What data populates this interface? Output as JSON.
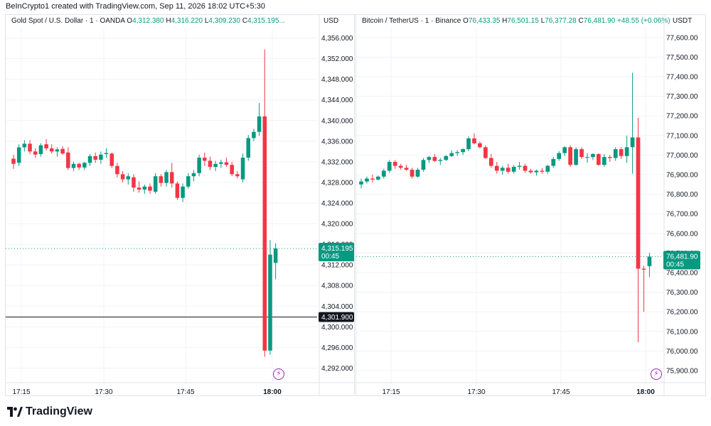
{
  "watermark": "BeInCrypto1 created with TradingView.com, Sep 11, 2026 18:02 UTC+5:30",
  "brand": "TradingView",
  "colors": {
    "up": "#089981",
    "down": "#f23645",
    "grid": "#f0f3fa",
    "text": "#131722"
  },
  "icons": [
    "tradingview-logo-icon",
    "lightning-icon"
  ],
  "panels": [
    {
      "symbol": "Gold Spot / U.S. Dollar · 1 · OANDA",
      "o_label": "O",
      "o": "4,312.380",
      "h_label": "H",
      "h": "4,316.220",
      "l_label": "L",
      "l": "4,309.230",
      "c_label": "C",
      "c": "4,315.195...",
      "currency": "USD",
      "last_price": "4,315.195",
      "countdown": "00:45",
      "marked_line_label": "4,301.900"
    },
    {
      "symbol": "Bitcoin / TetherUS · 1 · Binance",
      "o_label": "O",
      "o": "76,433.35",
      "h_label": "H",
      "h": "76,501.15",
      "l_label": "L",
      "l": "76,377.28",
      "c_label": "C",
      "c": "76,481.90",
      "change": "+48.55 (+0.06%)",
      "currency": "USDT",
      "last_price": "76,481.90",
      "countdown": "00:45"
    }
  ],
  "chart_data": [
    {
      "type": "candlestick",
      "title": "Gold Spot / U.S. Dollar · 1 · OANDA",
      "x_ticks": [
        "17:15",
        "17:30",
        "17:45",
        "18:00"
      ],
      "y_ticks": [
        4292,
        4296,
        4300,
        4304,
        4308,
        4312,
        4316,
        4320,
        4324,
        4328,
        4332,
        4336,
        4340,
        4344,
        4348,
        4352,
        4356
      ],
      "y_tick_labels": [
        "4,292.000",
        "4,296.000",
        "4,300.000",
        "4,304.000",
        "4,308.000",
        "4,312.000",
        "4,316.000",
        "4,320.000",
        "4,324.000",
        "4,328.000",
        "4,332.000",
        "4,336.000",
        "4,340.000",
        "4,344.000",
        "4,348.000",
        "4,352.000",
        "4,356.000"
      ],
      "ylim": [
        4290.0,
        4358.0
      ],
      "last_price": 4315.195,
      "horizontal_line": 4301.9,
      "candles": [
        {
          "t": "17:13",
          "o": 4332.6,
          "h": 4333.4,
          "l": 4330.6,
          "c": 4331.6
        },
        {
          "t": "17:14",
          "o": 4331.8,
          "h": 4335.4,
          "l": 4331.2,
          "c": 4334.8
        },
        {
          "t": "17:15",
          "o": 4334.8,
          "h": 4336.2,
          "l": 4334.0,
          "c": 4335.5
        },
        {
          "t": "17:16",
          "o": 4335.5,
          "h": 4336.2,
          "l": 4333.5,
          "c": 4334.0
        },
        {
          "t": "17:17",
          "o": 4334.0,
          "h": 4334.6,
          "l": 4332.8,
          "c": 4333.4
        },
        {
          "t": "17:18",
          "o": 4333.5,
          "h": 4335.6,
          "l": 4333.0,
          "c": 4335.2
        },
        {
          "t": "17:19",
          "o": 4335.4,
          "h": 4336.4,
          "l": 4334.2,
          "c": 4334.6
        },
        {
          "t": "17:20",
          "o": 4334.6,
          "h": 4335.4,
          "l": 4333.6,
          "c": 4334.0
        },
        {
          "t": "17:21",
          "o": 4334.0,
          "h": 4334.8,
          "l": 4333.0,
          "c": 4334.4
        },
        {
          "t": "17:22",
          "o": 4334.5,
          "h": 4335.0,
          "l": 4333.4,
          "c": 4333.6
        },
        {
          "t": "17:23",
          "o": 4333.8,
          "h": 4334.8,
          "l": 4330.4,
          "c": 4330.8
        },
        {
          "t": "17:24",
          "o": 4330.8,
          "h": 4332.0,
          "l": 4330.2,
          "c": 4331.6
        },
        {
          "t": "17:25",
          "o": 4331.6,
          "h": 4331.8,
          "l": 4330.4,
          "c": 4330.9
        },
        {
          "t": "17:26",
          "o": 4330.9,
          "h": 4332.0,
          "l": 4330.4,
          "c": 4331.8
        },
        {
          "t": "17:27",
          "o": 4331.8,
          "h": 4333.5,
          "l": 4331.2,
          "c": 4333.1
        },
        {
          "t": "17:28",
          "o": 4333.1,
          "h": 4333.8,
          "l": 4331.8,
          "c": 4332.4
        },
        {
          "t": "17:29",
          "o": 4332.4,
          "h": 4334.0,
          "l": 4331.6,
          "c": 4333.4
        },
        {
          "t": "17:30",
          "o": 4333.5,
          "h": 4334.6,
          "l": 4332.8,
          "c": 4333.7
        },
        {
          "t": "17:31",
          "o": 4333.6,
          "h": 4333.8,
          "l": 4330.8,
          "c": 4331.2
        },
        {
          "t": "17:32",
          "o": 4331.2,
          "h": 4331.8,
          "l": 4329.0,
          "c": 4329.6
        },
        {
          "t": "17:33",
          "o": 4329.6,
          "h": 4330.2,
          "l": 4328.0,
          "c": 4328.6
        },
        {
          "t": "17:34",
          "o": 4328.6,
          "h": 4329.8,
          "l": 4327.6,
          "c": 4329.2
        },
        {
          "t": "17:35",
          "o": 4329.0,
          "h": 4329.6,
          "l": 4326.2,
          "c": 4327.0
        },
        {
          "t": "17:36",
          "o": 4327.0,
          "h": 4328.2,
          "l": 4326.0,
          "c": 4326.6
        },
        {
          "t": "17:37",
          "o": 4326.6,
          "h": 4327.6,
          "l": 4325.8,
          "c": 4327.2
        },
        {
          "t": "17:38",
          "o": 4327.2,
          "h": 4327.8,
          "l": 4325.8,
          "c": 4326.4
        },
        {
          "t": "17:39",
          "o": 4326.2,
          "h": 4329.8,
          "l": 4325.8,
          "c": 4329.2
        },
        {
          "t": "17:40",
          "o": 4329.2,
          "h": 4329.6,
          "l": 4327.2,
          "c": 4327.9
        },
        {
          "t": "17:41",
          "o": 4327.9,
          "h": 4330.4,
          "l": 4327.2,
          "c": 4330.0
        },
        {
          "t": "17:42",
          "o": 4330.0,
          "h": 4331.8,
          "l": 4327.0,
          "c": 4327.8
        },
        {
          "t": "17:43",
          "o": 4327.8,
          "h": 4328.2,
          "l": 4324.6,
          "c": 4325.0
        },
        {
          "t": "17:44",
          "o": 4325.0,
          "h": 4327.8,
          "l": 4324.2,
          "c": 4327.2
        },
        {
          "t": "17:45",
          "o": 4327.2,
          "h": 4329.8,
          "l": 4326.8,
          "c": 4329.2
        },
        {
          "t": "17:46",
          "o": 4329.2,
          "h": 4330.4,
          "l": 4328.2,
          "c": 4329.8
        },
        {
          "t": "17:47",
          "o": 4329.8,
          "h": 4333.4,
          "l": 4329.2,
          "c": 4332.8
        },
        {
          "t": "17:48",
          "o": 4332.8,
          "h": 4333.8,
          "l": 4331.2,
          "c": 4332.2
        },
        {
          "t": "17:49",
          "o": 4332.2,
          "h": 4333.0,
          "l": 4330.4,
          "c": 4331.0
        },
        {
          "t": "17:50",
          "o": 4331.0,
          "h": 4332.2,
          "l": 4330.2,
          "c": 4331.6
        },
        {
          "t": "17:51",
          "o": 4331.6,
          "h": 4332.4,
          "l": 4330.8,
          "c": 4331.9
        },
        {
          "t": "17:52",
          "o": 4331.9,
          "h": 4332.8,
          "l": 4331.0,
          "c": 4331.4
        },
        {
          "t": "17:53",
          "o": 4331.4,
          "h": 4332.0,
          "l": 4329.2,
          "c": 4329.6
        },
        {
          "t": "17:54",
          "o": 4329.6,
          "h": 4330.2,
          "l": 4328.8,
          "c": 4329.2
        },
        {
          "t": "17:55",
          "o": 4328.6,
          "h": 4333.6,
          "l": 4328.0,
          "c": 4332.8
        },
        {
          "t": "17:56",
          "o": 4332.8,
          "h": 4337.2,
          "l": 4332.2,
          "c": 4336.6
        },
        {
          "t": "17:57",
          "o": 4336.6,
          "h": 4338.4,
          "l": 4336.0,
          "c": 4337.8
        },
        {
          "t": "17:58",
          "o": 4337.8,
          "h": 4343.4,
          "l": 4337.0,
          "c": 4340.8
        },
        {
          "t": "17:59",
          "o": 4340.8,
          "h": 4353.8,
          "l": 4294.2,
          "c": 4295.4
        },
        {
          "t": "18:00",
          "o": 4295.4,
          "h": 4316.8,
          "l": 4294.6,
          "c": 4314.0
        },
        {
          "t": "18:01",
          "o": 4312.4,
          "h": 4316.2,
          "l": 4309.2,
          "c": 4315.2
        }
      ]
    },
    {
      "type": "candlestick",
      "title": "Bitcoin / TetherUS · 1 · Binance",
      "x_ticks": [
        "17:15",
        "17:30",
        "17:45",
        "18:00"
      ],
      "y_ticks": [
        75900,
        76000,
        76100,
        76200,
        76300,
        76400,
        76500,
        76600,
        76700,
        76800,
        76900,
        77000,
        77100,
        77200,
        77300,
        77400,
        77500,
        77600
      ],
      "y_tick_labels": [
        "75,900.00",
        "76,000.00",
        "76,100.00",
        "76,200.00",
        "76,300.00",
        "76,400.00",
        "76,500.00",
        "76,600.00",
        "76,700.00",
        "76,800.00",
        "76,900.00",
        "77,000.00",
        "77,100.00",
        "77,200.00",
        "77,300.00",
        "77,400.00",
        "77,500.00",
        "77,600.00"
      ],
      "ylim": [
        75860,
        77650
      ],
      "last_price": 76481.9,
      "candles": [
        {
          "t": "17:13",
          "o": 76850,
          "h": 76880,
          "l": 76830,
          "c": 76865
        },
        {
          "t": "17:14",
          "o": 76865,
          "h": 76890,
          "l": 76855,
          "c": 76880
        },
        {
          "t": "17:15",
          "o": 76880,
          "h": 76900,
          "l": 76860,
          "c": 76875
        },
        {
          "t": "17:16",
          "o": 76875,
          "h": 76895,
          "l": 76870,
          "c": 76890
        },
        {
          "t": "17:17",
          "o": 76890,
          "h": 76930,
          "l": 76880,
          "c": 76920
        },
        {
          "t": "17:18",
          "o": 76920,
          "h": 76975,
          "l": 76910,
          "c": 76965
        },
        {
          "t": "17:19",
          "o": 76965,
          "h": 76975,
          "l": 76930,
          "c": 76945
        },
        {
          "t": "17:20",
          "o": 76945,
          "h": 76955,
          "l": 76925,
          "c": 76935
        },
        {
          "t": "17:21",
          "o": 76935,
          "h": 76950,
          "l": 76920,
          "c": 76925
        },
        {
          "t": "17:22",
          "o": 76925,
          "h": 76935,
          "l": 76880,
          "c": 76890
        },
        {
          "t": "17:23",
          "o": 76890,
          "h": 76935,
          "l": 76885,
          "c": 76925
        },
        {
          "t": "17:24",
          "o": 76925,
          "h": 76985,
          "l": 76915,
          "c": 76975
        },
        {
          "t": "17:25",
          "o": 76975,
          "h": 76995,
          "l": 76960,
          "c": 76990
        },
        {
          "t": "17:26",
          "o": 76990,
          "h": 77005,
          "l": 76965,
          "c": 76970
        },
        {
          "t": "17:27",
          "o": 76970,
          "h": 76985,
          "l": 76950,
          "c": 76975
        },
        {
          "t": "17:28",
          "o": 76975,
          "h": 77000,
          "l": 76970,
          "c": 76995
        },
        {
          "t": "17:29",
          "o": 76995,
          "h": 77025,
          "l": 76990,
          "c": 77010
        },
        {
          "t": "17:30",
          "o": 77010,
          "h": 77025,
          "l": 76995,
          "c": 77015
        },
        {
          "t": "17:31",
          "o": 77015,
          "h": 77035,
          "l": 77000,
          "c": 77030
        },
        {
          "t": "17:32",
          "o": 77030,
          "h": 77095,
          "l": 77020,
          "c": 77085
        },
        {
          "t": "17:33",
          "o": 77085,
          "h": 77110,
          "l": 77055,
          "c": 77060
        },
        {
          "t": "17:34",
          "o": 77060,
          "h": 77070,
          "l": 77035,
          "c": 77040
        },
        {
          "t": "17:35",
          "o": 77040,
          "h": 77050,
          "l": 76980,
          "c": 76985
        },
        {
          "t": "17:36",
          "o": 76985,
          "h": 77005,
          "l": 76935,
          "c": 76945
        },
        {
          "t": "17:37",
          "o": 76945,
          "h": 76965,
          "l": 76905,
          "c": 76920
        },
        {
          "t": "17:38",
          "o": 76920,
          "h": 76945,
          "l": 76900,
          "c": 76935
        },
        {
          "t": "17:39",
          "o": 76935,
          "h": 76955,
          "l": 76905,
          "c": 76915
        },
        {
          "t": "17:40",
          "o": 76915,
          "h": 76950,
          "l": 76905,
          "c": 76940
        },
        {
          "t": "17:41",
          "o": 76940,
          "h": 76965,
          "l": 76925,
          "c": 76945
        },
        {
          "t": "17:42",
          "o": 76945,
          "h": 76955,
          "l": 76910,
          "c": 76920
        },
        {
          "t": "17:43",
          "o": 76920,
          "h": 76930,
          "l": 76905,
          "c": 76912
        },
        {
          "t": "17:44",
          "o": 76912,
          "h": 76925,
          "l": 76895,
          "c": 76920
        },
        {
          "t": "17:45",
          "o": 76920,
          "h": 76935,
          "l": 76905,
          "c": 76915
        },
        {
          "t": "17:46",
          "o": 76915,
          "h": 76950,
          "l": 76905,
          "c": 76945
        },
        {
          "t": "17:47",
          "o": 76945,
          "h": 76990,
          "l": 76935,
          "c": 76980
        },
        {
          "t": "17:48",
          "o": 76980,
          "h": 77020,
          "l": 76970,
          "c": 77010
        },
        {
          "t": "17:49",
          "o": 77010,
          "h": 77045,
          "l": 76995,
          "c": 77040
        },
        {
          "t": "17:50",
          "o": 77040,
          "h": 77050,
          "l": 76940,
          "c": 76950
        },
        {
          "t": "17:51",
          "o": 76950,
          "h": 77040,
          "l": 76945,
          "c": 77030
        },
        {
          "t": "17:52",
          "o": 77030,
          "h": 77040,
          "l": 76980,
          "c": 76990
        },
        {
          "t": "17:53",
          "o": 76990,
          "h": 77010,
          "l": 76960,
          "c": 76990
        },
        {
          "t": "17:54",
          "o": 76990,
          "h": 77010,
          "l": 76975,
          "c": 77005
        },
        {
          "t": "17:55",
          "o": 77005,
          "h": 77010,
          "l": 76945,
          "c": 76950
        },
        {
          "t": "17:56",
          "o": 76950,
          "h": 77005,
          "l": 76940,
          "c": 76990
        },
        {
          "t": "17:57",
          "o": 76990,
          "h": 77000,
          "l": 76965,
          "c": 76985
        },
        {
          "t": "17:58",
          "o": 76985,
          "h": 77040,
          "l": 76970,
          "c": 77030
        },
        {
          "t": "17:59",
          "o": 77030,
          "h": 77040,
          "l": 76980,
          "c": 76995
        },
        {
          "t": "17:60",
          "o": 76995,
          "h": 77100,
          "l": 76960,
          "c": 77040
        },
        {
          "t": "17:61",
          "o": 77040,
          "h": 77420,
          "l": 76905,
          "c": 77090
        },
        {
          "t": "17:62",
          "o": 77090,
          "h": 77190,
          "l": 76045,
          "c": 76420
        },
        {
          "t": "17:63",
          "o": 76420,
          "h": 76435,
          "l": 76200,
          "c": 76415
        },
        {
          "t": "18:01",
          "o": 76433,
          "h": 76501,
          "l": 76377,
          "c": 76482
        }
      ]
    }
  ]
}
